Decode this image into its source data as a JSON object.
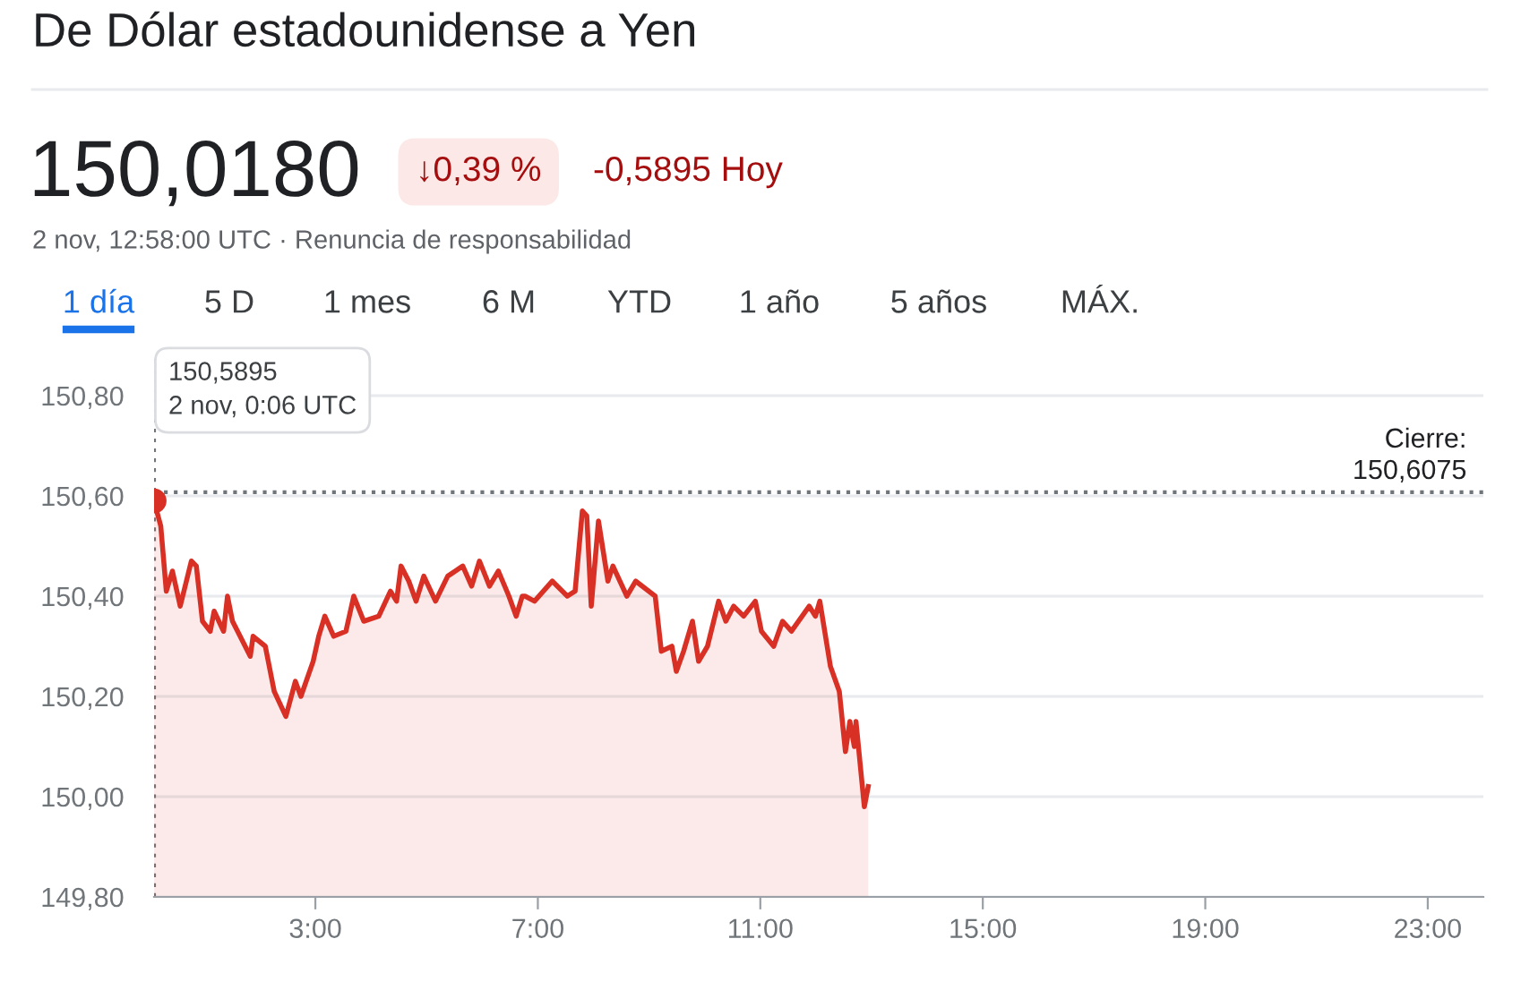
{
  "chart_data": {
    "type": "area",
    "title": "De Dólar estadounidense a Yen",
    "annotations": [
      "150,0180",
      "↓0,39 %",
      "-0,5895 Hoy",
      "2 nov, 12:58:00 UTC · Renuncia de responsabilidad",
      "1 día",
      "5 D",
      "1 mes",
      "6 M",
      "YTD",
      "1 año",
      "5 años",
      "MÁX.",
      "150,5895\n2 nov, 0:06 UTC"
    ],
    "x": [
      0.1,
      0.22,
      0.32,
      0.43,
      0.57,
      0.77,
      0.86,
      0.97,
      1.11,
      1.18,
      1.35,
      1.42,
      1.51,
      1.83,
      1.88,
      2.1,
      2.26,
      2.47,
      2.64,
      2.74,
      2.96,
      3.06,
      3.17,
      3.33,
      3.55,
      3.69,
      3.87,
      4.14,
      4.35,
      4.46,
      4.54,
      4.68,
      4.81,
      4.95,
      5.16,
      5.38,
      5.65,
      5.81,
      5.95,
      6.13,
      6.29,
      6.48,
      6.61,
      6.72,
      6.77,
      6.94,
      7.26,
      7.53,
      7.67,
      7.8,
      7.88,
      7.96,
      8.09,
      8.26,
      8.35,
      8.6,
      8.76,
      9.11,
      9.22,
      9.41,
      9.49,
      9.62,
      9.78,
      9.89,
      10.05,
      10.25,
      10.38,
      10.52,
      10.7,
      10.91,
      11.02,
      11.24,
      11.4,
      11.56,
      11.88,
      11.99,
      12.07,
      12.26,
      12.42,
      12.53,
      12.61,
      12.69,
      12.72,
      12.87,
      12.94
    ],
    "series": [
      {
        "color": "#d93025",
        "values": [
          150.59,
          150.54,
          150.41,
          150.45,
          150.38,
          150.47,
          150.46,
          150.35,
          150.33,
          150.37,
          150.33,
          150.4,
          150.35,
          150.28,
          150.32,
          150.3,
          150.21,
          150.16,
          150.23,
          150.2,
          150.27,
          150.32,
          150.36,
          150.32,
          150.33,
          150.4,
          150.35,
          150.36,
          150.41,
          150.39,
          150.46,
          150.43,
          150.39,
          150.44,
          150.39,
          150.44,
          150.46,
          150.42,
          150.47,
          150.42,
          150.45,
          150.4,
          150.36,
          150.4,
          150.4,
          150.39,
          150.43,
          150.4,
          150.41,
          150.57,
          150.56,
          150.38,
          150.55,
          150.43,
          150.46,
          150.4,
          150.43,
          150.4,
          150.29,
          150.3,
          150.25,
          150.29,
          150.35,
          150.27,
          150.3,
          150.39,
          150.35,
          150.38,
          150.36,
          150.39,
          150.33,
          150.3,
          150.35,
          150.33,
          150.38,
          150.36,
          150.39,
          150.26,
          150.21,
          150.09,
          150.15,
          150.1,
          150.15,
          149.98,
          150.02
        ]
      }
    ],
    "xlim": [
      0.1,
      24
    ],
    "ylim": [
      149.8,
      150.88
    ],
    "xticks": [
      {
        "value": 3,
        "label": "3:00"
      },
      {
        "value": 7,
        "label": "7:00"
      },
      {
        "value": 11,
        "label": "11:00"
      },
      {
        "value": 15,
        "label": "15:00"
      },
      {
        "value": 19,
        "label": "19:00"
      },
      {
        "value": 23,
        "label": "23:00"
      }
    ],
    "yticks": [
      {
        "value": 149.8,
        "label": "149,80"
      },
      {
        "value": 150.0,
        "label": "150,00"
      },
      {
        "value": 150.2,
        "label": "150,20"
      },
      {
        "value": 150.4,
        "label": "150,40"
      },
      {
        "value": 150.6,
        "label": "150,60"
      },
      {
        "value": 150.8,
        "label": "150,80"
      }
    ],
    "ref_lines": [
      {
        "axis": "y",
        "value": 150.6075,
        "label": "Cierre:\n150,6075",
        "color": "#70757a",
        "line_style": "dotted"
      },
      {
        "axis": "x",
        "value": 0.1,
        "label": null,
        "color": "#70757a",
        "line_style": "dotted"
      }
    ],
    "grid": "y",
    "legend": false
  }
}
